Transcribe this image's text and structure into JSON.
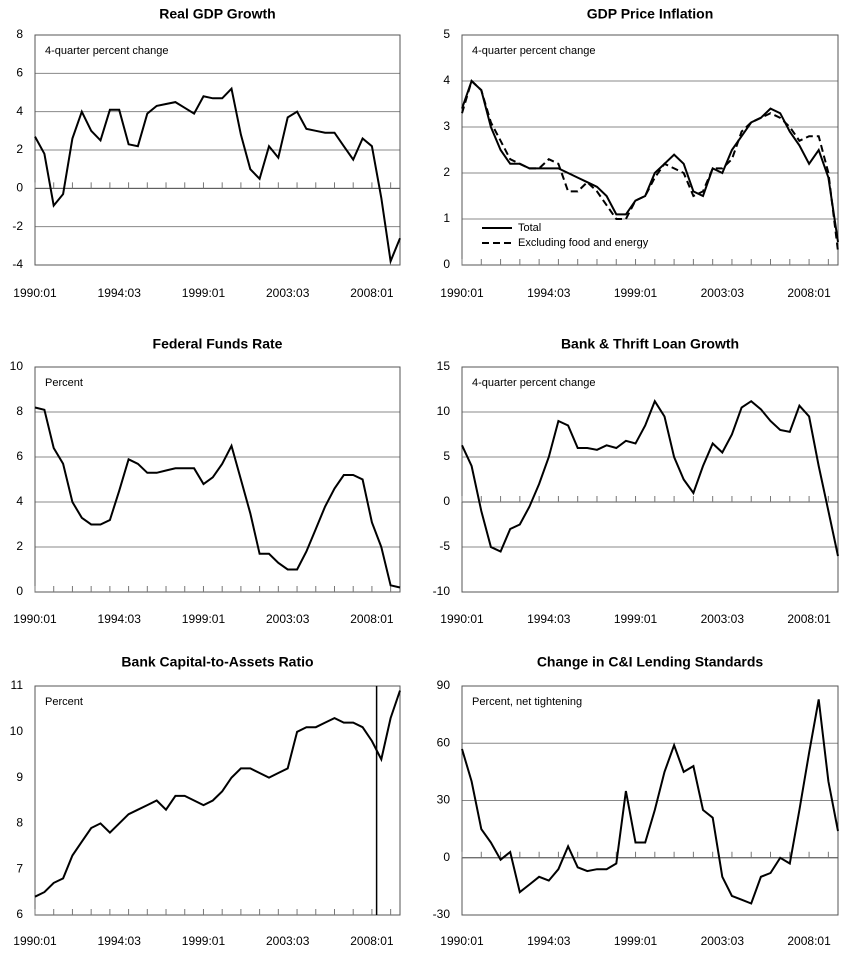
{
  "chart_data": [
    {
      "type": "line",
      "title": "Real GDP Growth",
      "note": "4-quarter percent change",
      "categories": [
        "1990:01",
        null,
        null,
        null,
        null,
        null,
        null,
        null,
        null,
        "1994:03",
        null,
        null,
        null,
        null,
        null,
        null,
        null,
        null,
        "1999:01",
        null,
        null,
        null,
        null,
        null,
        null,
        null,
        null,
        "2003:03",
        null,
        null,
        null,
        null,
        null,
        null,
        null,
        null,
        "2008:01",
        null,
        null,
        null
      ],
      "color": "#000000",
      "values": [
        2.7,
        1.8,
        -0.9,
        -0.3,
        2.6,
        4.0,
        3.0,
        2.5,
        4.1,
        4.1,
        2.3,
        2.2,
        3.9,
        4.3,
        4.4,
        4.5,
        4.2,
        3.9,
        4.8,
        4.7,
        4.7,
        5.2,
        2.8,
        1.0,
        0.5,
        2.2,
        1.6,
        3.7,
        4.0,
        3.1,
        3.0,
        2.9,
        2.9,
        2.2,
        1.5,
        2.6,
        2.2,
        -0.5,
        -3.8,
        -2.6
      ],
      "ylim": [
        -4,
        8
      ],
      "yticks": [
        -4,
        -2,
        0,
        2,
        4,
        6,
        8
      ],
      "grid": true
    },
    {
      "type": "line",
      "title": "GDP Price Inflation",
      "note": "4-quarter percent change",
      "categories": [
        "1990:01",
        null,
        null,
        null,
        null,
        null,
        null,
        null,
        null,
        "1994:03",
        null,
        null,
        null,
        null,
        null,
        null,
        null,
        null,
        "1999:01",
        null,
        null,
        null,
        null,
        null,
        null,
        null,
        null,
        "2003:03",
        null,
        null,
        null,
        null,
        null,
        null,
        null,
        null,
        "2008:01",
        null,
        null,
        null
      ],
      "series": [
        {
          "name": "Total",
          "color": "#000000",
          "style": "solid",
          "values": [
            3.4,
            4.0,
            3.8,
            3.0,
            2.5,
            2.2,
            2.2,
            2.1,
            2.1,
            2.1,
            2.1,
            2.0,
            1.9,
            1.8,
            1.7,
            1.5,
            1.1,
            1.1,
            1.4,
            1.5,
            2.0,
            2.2,
            2.4,
            2.2,
            1.6,
            1.5,
            2.1,
            2.0,
            2.5,
            2.8,
            3.1,
            3.2,
            3.4,
            3.3,
            2.9,
            2.6,
            2.2,
            2.5,
            1.9,
            0.5
          ]
        },
        {
          "name": "Excluding food and energy",
          "color": "#000000",
          "style": "dashed",
          "values": [
            3.3,
            4.0,
            3.8,
            3.1,
            2.7,
            2.3,
            2.2,
            2.1,
            2.1,
            2.3,
            2.2,
            1.6,
            1.6,
            1.8,
            1.6,
            1.3,
            1.0,
            1.0,
            1.4,
            1.5,
            1.9,
            2.2,
            2.1,
            2.0,
            1.5,
            1.6,
            2.1,
            2.1,
            2.3,
            2.9,
            3.1,
            3.2,
            3.3,
            3.2,
            3.0,
            2.7,
            2.8,
            2.8,
            2.0,
            0.3
          ]
        }
      ],
      "ylim": [
        0,
        5
      ],
      "yticks": [
        0,
        1,
        2,
        3,
        4,
        5
      ],
      "grid": true,
      "legend": "bottom-left"
    },
    {
      "type": "line",
      "title": "Federal Funds Rate",
      "note": "Percent",
      "categories": [
        "1990:01",
        null,
        null,
        null,
        null,
        null,
        null,
        null,
        null,
        "1994:03",
        null,
        null,
        null,
        null,
        null,
        null,
        null,
        null,
        "1999:01",
        null,
        null,
        null,
        null,
        null,
        null,
        null,
        null,
        "2003:03",
        null,
        null,
        null,
        null,
        null,
        null,
        null,
        null,
        "2008:01",
        null,
        null,
        null
      ],
      "color": "#000000",
      "values": [
        8.2,
        8.1,
        6.4,
        5.7,
        4.0,
        3.3,
        3.0,
        3.0,
        3.2,
        4.5,
        5.9,
        5.7,
        5.3,
        5.3,
        5.4,
        5.5,
        5.5,
        5.5,
        4.8,
        5.1,
        5.7,
        6.5,
        5.0,
        3.5,
        1.7,
        1.7,
        1.3,
        1.0,
        1.0,
        1.8,
        2.8,
        3.8,
        4.6,
        5.2,
        5.2,
        5.0,
        3.1,
        2.0,
        0.3,
        0.2
      ],
      "ylim": [
        0,
        10
      ],
      "yticks": [
        0,
        2,
        4,
        6,
        8,
        10
      ],
      "grid": true
    },
    {
      "type": "line",
      "title": "Bank & Thrift Loan Growth",
      "note": "4-quarter percent change",
      "categories": [
        "1990:01",
        null,
        null,
        null,
        null,
        null,
        null,
        null,
        null,
        "1994:03",
        null,
        null,
        null,
        null,
        null,
        null,
        null,
        null,
        "1999:01",
        null,
        null,
        null,
        null,
        null,
        null,
        null,
        null,
        "2003:03",
        null,
        null,
        null,
        null,
        null,
        null,
        null,
        null,
        "2008:01",
        null,
        null,
        null
      ],
      "color": "#000000",
      "values": [
        6.3,
        4.0,
        -1.0,
        -5.0,
        -5.5,
        -3.0,
        -2.5,
        -0.5,
        2.0,
        5.0,
        9.0,
        8.5,
        6.0,
        6.0,
        5.8,
        6.3,
        6.0,
        6.8,
        6.5,
        8.5,
        11.2,
        9.5,
        5.0,
        2.5,
        1.0,
        4.0,
        6.5,
        5.5,
        7.5,
        10.5,
        11.2,
        10.3,
        9.0,
        8.0,
        7.8,
        10.7,
        9.5,
        4.0,
        -1.0,
        -6.0
      ],
      "ylim": [
        -10,
        15
      ],
      "yticks": [
        -10,
        -5,
        0,
        5,
        10,
        15
      ],
      "grid": true
    },
    {
      "type": "line",
      "title": "Bank Capital-to-Assets Ratio",
      "note": "Percent",
      "categories": [
        "1990:01",
        null,
        null,
        null,
        null,
        null,
        null,
        null,
        null,
        "1994:03",
        null,
        null,
        null,
        null,
        null,
        null,
        null,
        null,
        "1999:01",
        null,
        null,
        null,
        null,
        null,
        null,
        null,
        null,
        "2003:03",
        null,
        null,
        null,
        null,
        null,
        null,
        null,
        null,
        "2008:01",
        null,
        null,
        null
      ],
      "color": "#000000",
      "values": [
        6.4,
        6.5,
        6.7,
        6.8,
        7.3,
        7.6,
        7.9,
        8.0,
        7.8,
        8.0,
        8.2,
        8.3,
        8.4,
        8.5,
        8.3,
        8.6,
        8.6,
        8.5,
        8.4,
        8.5,
        8.7,
        9.0,
        9.2,
        9.2,
        9.1,
        9.0,
        9.1,
        9.2,
        10.0,
        10.1,
        10.1,
        10.2,
        10.3,
        10.2,
        10.2,
        10.1,
        9.8,
        9.4,
        10.3,
        10.9
      ],
      "ylim": [
        6,
        11
      ],
      "yticks": [
        6,
        7,
        8,
        9,
        10,
        11
      ],
      "grid": false
    },
    {
      "type": "line",
      "title": "Change in C&I Lending Standards",
      "note": "Percent, net tightening",
      "categories": [
        "1990:01",
        null,
        null,
        null,
        null,
        null,
        null,
        null,
        null,
        "1994:03",
        null,
        null,
        null,
        null,
        null,
        null,
        null,
        null,
        "1999:01",
        null,
        null,
        null,
        null,
        null,
        null,
        null,
        null,
        "2003:03",
        null,
        null,
        null,
        null,
        null,
        null,
        null,
        null,
        "2008:01",
        null,
        null,
        null
      ],
      "color": "#000000",
      "values": [
        57,
        40,
        15,
        8,
        -1,
        3,
        -18,
        -14,
        -10,
        -12,
        -6,
        6,
        -5,
        -7,
        -6,
        -6,
        -3,
        35,
        8,
        8,
        25,
        45,
        59,
        45,
        48,
        25,
        21,
        -10,
        -20,
        -22,
        -24,
        -10,
        -8,
        0,
        -3,
        25,
        55,
        83,
        40,
        14
      ],
      "ylim": [
        -30,
        90
      ],
      "yticks": [
        -30,
        0,
        30,
        60,
        90
      ],
      "grid": true
    }
  ]
}
